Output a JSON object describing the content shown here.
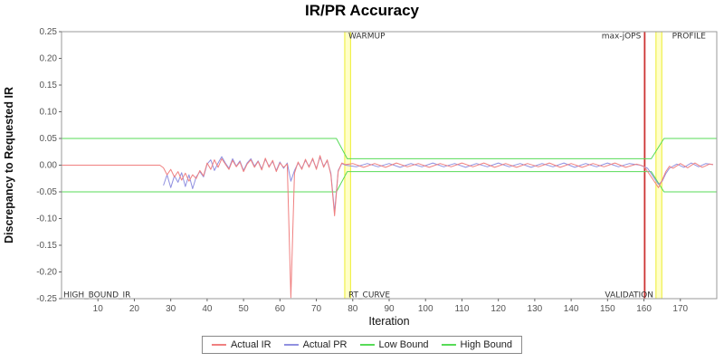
{
  "title": "IR/PR Accuracy",
  "axes": {
    "x_label": "Iteration",
    "y_label": "Discrepancy to Requested IR",
    "x_ticks": [
      10,
      20,
      30,
      40,
      50,
      60,
      70,
      80,
      90,
      100,
      110,
      120,
      130,
      140,
      150,
      160,
      170
    ],
    "y_ticks": [
      -0.25,
      -0.2,
      -0.15,
      -0.1,
      -0.05,
      0.0,
      0.05,
      0.1,
      0.15,
      0.2,
      0.25
    ]
  },
  "colors": {
    "actual_ir": "#f08080",
    "actual_pr": "#9090e0",
    "bound": "#57db57",
    "band_fill": "#ffffc8",
    "band_edge": "#eded30",
    "vline": "#cc3333",
    "plot_border": "#999999",
    "tick": "#666666",
    "tick_label": "#555555",
    "annotation": "#333333"
  },
  "legend": [
    {
      "label": "Actual IR",
      "color": "#f08080"
    },
    {
      "label": "Actual PR",
      "color": "#9090e0"
    },
    {
      "label": "Low Bound",
      "color": "#57db57"
    },
    {
      "label": "High Bound",
      "color": "#57db57"
    }
  ],
  "chart_data": {
    "type": "line",
    "title": "IR/PR Accuracy",
    "xlabel": "Iteration",
    "ylabel": "Discrepancy to Requested IR",
    "x_range": [
      0,
      180
    ],
    "y_range": [
      -0.25,
      0.25
    ],
    "grid": false,
    "legend_position": "bottom",
    "bands": [
      {
        "name": "warmup-band",
        "x0": 77.8,
        "x1": 79.4
      },
      {
        "name": "profile-band",
        "x0": 163.3,
        "x1": 164.9
      }
    ],
    "vlines": [
      {
        "name": "max-jops-line",
        "x": 160.2
      }
    ],
    "annotations": [
      {
        "text": "WARMUP",
        "x": 78.8,
        "y": 0.242,
        "anchor": "start"
      },
      {
        "text": "max-jOPS",
        "x": 159.2,
        "y": 0.242,
        "anchor": "end"
      },
      {
        "text": "PROFILE",
        "x": 177.0,
        "y": 0.242,
        "anchor": "end"
      },
      {
        "text": "HIGH_BOUND_IR",
        "x": 0.5,
        "y": -0.242,
        "anchor": "start"
      },
      {
        "text": "RT_CURVE",
        "x": 78.8,
        "y": -0.242,
        "anchor": "start"
      },
      {
        "text": "VALIDATION",
        "x": 162.6,
        "y": -0.242,
        "anchor": "end"
      }
    ],
    "series": [
      {
        "name": "High Bound",
        "color": "#57db57",
        "width": 1,
        "points": [
          [
            0,
            0.05
          ],
          [
            75.5,
            0.05
          ],
          [
            78.5,
            0.012
          ],
          [
            162,
            0.012
          ],
          [
            165.5,
            0.05
          ],
          [
            180,
            0.05
          ]
        ]
      },
      {
        "name": "Low Bound",
        "color": "#57db57",
        "width": 1,
        "points": [
          [
            0,
            -0.05
          ],
          [
            75.5,
            -0.05
          ],
          [
            78.5,
            -0.012
          ],
          [
            162,
            -0.012
          ],
          [
            165.5,
            -0.05
          ],
          [
            180,
            -0.05
          ]
        ]
      },
      {
        "name": "Actual PR",
        "color": "#9090e0",
        "width": 1,
        "points": [
          [
            28,
            -0.038
          ],
          [
            29,
            -0.018
          ],
          [
            30,
            -0.042
          ],
          [
            31,
            -0.02
          ],
          [
            32,
            -0.032
          ],
          [
            33,
            -0.014
          ],
          [
            34,
            -0.04
          ],
          [
            35,
            -0.018
          ],
          [
            36,
            -0.044
          ],
          [
            37,
            -0.022
          ],
          [
            38,
            -0.012
          ],
          [
            39,
            -0.022
          ],
          [
            40,
            0.002
          ],
          [
            41,
            0.01
          ],
          [
            42,
            -0.01
          ],
          [
            43,
            0.004
          ],
          [
            44,
            0.016
          ],
          [
            45,
            0.004
          ],
          [
            46,
            -0.006
          ],
          [
            47,
            0.012
          ],
          [
            48,
            -0.002
          ],
          [
            49,
            0.008
          ],
          [
            50,
            -0.01
          ],
          [
            51,
            0.004
          ],
          [
            52,
            0.012
          ],
          [
            53,
            -0.002
          ],
          [
            54,
            0.008
          ],
          [
            55,
            -0.007
          ],
          [
            56,
            0.011
          ],
          [
            57,
            -0.002
          ],
          [
            58,
            0.007
          ],
          [
            59,
            -0.01
          ],
          [
            60,
            0.006
          ],
          [
            61,
            -0.006
          ],
          [
            62,
            0.004
          ],
          [
            63,
            -0.03
          ],
          [
            64,
            -0.01
          ],
          [
            65,
            0.004
          ],
          [
            66,
            -0.006
          ],
          [
            67,
            0.009
          ],
          [
            68,
            -0.002
          ],
          [
            69,
            0.011
          ],
          [
            70,
            -0.006
          ],
          [
            71,
            0.015
          ],
          [
            72,
            -0.002
          ],
          [
            73,
            0.008
          ],
          [
            74,
            -0.015
          ],
          [
            75,
            -0.088
          ],
          [
            76,
            -0.01
          ],
          [
            77,
            0.003
          ],
          [
            78,
            0.0
          ],
          [
            81,
            -0.003
          ],
          [
            84,
            0.003
          ],
          [
            87,
            -0.003
          ],
          [
            90,
            0.003
          ],
          [
            93,
            -0.004
          ],
          [
            96,
            0.003
          ],
          [
            99,
            -0.003
          ],
          [
            102,
            0.004
          ],
          [
            105,
            -0.003
          ],
          [
            108,
            0.003
          ],
          [
            111,
            -0.004
          ],
          [
            114,
            0.003
          ],
          [
            117,
            -0.003
          ],
          [
            120,
            0.004
          ],
          [
            123,
            -0.003
          ],
          [
            126,
            0.003
          ],
          [
            129,
            -0.004
          ],
          [
            132,
            0.003
          ],
          [
            135,
            -0.003
          ],
          [
            138,
            0.004
          ],
          [
            141,
            -0.004
          ],
          [
            144,
            0.003
          ],
          [
            147,
            -0.003
          ],
          [
            150,
            0.004
          ],
          [
            153,
            -0.003
          ],
          [
            156,
            0.003
          ],
          [
            159,
            0.0
          ],
          [
            161,
            -0.006
          ],
          [
            162,
            -0.016
          ],
          [
            163,
            -0.026
          ],
          [
            164,
            -0.036
          ],
          [
            165,
            -0.03
          ],
          [
            166,
            -0.016
          ],
          [
            167,
            -0.006
          ],
          [
            169,
            0.002
          ],
          [
            171,
            -0.004
          ],
          [
            173,
            0.004
          ],
          [
            175,
            -0.003
          ],
          [
            177,
            0.003
          ],
          [
            179,
            0.001
          ]
        ]
      },
      {
        "name": "Actual IR",
        "color": "#f08080",
        "width": 1,
        "points": [
          [
            0,
            0
          ],
          [
            27,
            0
          ],
          [
            28,
            -0.005
          ],
          [
            29,
            -0.018
          ],
          [
            30,
            -0.008
          ],
          [
            31,
            -0.022
          ],
          [
            32,
            -0.012
          ],
          [
            33,
            -0.028
          ],
          [
            34,
            -0.015
          ],
          [
            35,
            -0.03
          ],
          [
            36,
            -0.018
          ],
          [
            37,
            -0.025
          ],
          [
            38,
            -0.01
          ],
          [
            39,
            -0.02
          ],
          [
            40,
            0.004
          ],
          [
            41,
            -0.008
          ],
          [
            42,
            0.01
          ],
          [
            43,
            -0.004
          ],
          [
            44,
            0.012
          ],
          [
            45,
            0.002
          ],
          [
            46,
            -0.008
          ],
          [
            47,
            0.009
          ],
          [
            48,
            -0.003
          ],
          [
            49,
            0.006
          ],
          [
            50,
            -0.012
          ],
          [
            51,
            0.002
          ],
          [
            52,
            0.01
          ],
          [
            53,
            -0.004
          ],
          [
            54,
            0.007
          ],
          [
            55,
            -0.009
          ],
          [
            56,
            0.013
          ],
          [
            57,
            -0.004
          ],
          [
            58,
            0.009
          ],
          [
            59,
            -0.012
          ],
          [
            60,
            0.004
          ],
          [
            61,
            -0.004
          ],
          [
            62,
            0.002
          ],
          [
            63,
            -0.248
          ],
          [
            64,
            -0.015
          ],
          [
            65,
            0.006
          ],
          [
            66,
            -0.008
          ],
          [
            67,
            0.011
          ],
          [
            68,
            -0.004
          ],
          [
            69,
            0.013
          ],
          [
            70,
            -0.008
          ],
          [
            71,
            0.018
          ],
          [
            72,
            -0.004
          ],
          [
            73,
            0.01
          ],
          [
            74,
            -0.018
          ],
          [
            75,
            -0.095
          ],
          [
            76,
            -0.012
          ],
          [
            77,
            0.004
          ],
          [
            78,
            0.001
          ],
          [
            80,
            0.003
          ],
          [
            83,
            -0.004
          ],
          [
            86,
            0.003
          ],
          [
            89,
            -0.004
          ],
          [
            92,
            0.004
          ],
          [
            95,
            -0.003
          ],
          [
            98,
            0.003
          ],
          [
            101,
            -0.004
          ],
          [
            104,
            0.003
          ],
          [
            107,
            -0.003
          ],
          [
            110,
            0.004
          ],
          [
            113,
            -0.003
          ],
          [
            116,
            0.004
          ],
          [
            119,
            -0.004
          ],
          [
            122,
            0.003
          ],
          [
            125,
            -0.004
          ],
          [
            128,
            0.003
          ],
          [
            131,
            -0.003
          ],
          [
            134,
            0.004
          ],
          [
            137,
            -0.004
          ],
          [
            140,
            0.003
          ],
          [
            143,
            -0.004
          ],
          [
            146,
            0.003
          ],
          [
            149,
            -0.003
          ],
          [
            152,
            0.004
          ],
          [
            155,
            -0.004
          ],
          [
            158,
            0.002
          ],
          [
            160,
            -0.002
          ],
          [
            161,
            -0.012
          ],
          [
            162,
            -0.022
          ],
          [
            163,
            -0.032
          ],
          [
            164,
            -0.042
          ],
          [
            165,
            -0.028
          ],
          [
            166,
            -0.012
          ],
          [
            167,
            -0.002
          ],
          [
            168,
            -0.006
          ],
          [
            170,
            0.003
          ],
          [
            172,
            -0.005
          ],
          [
            174,
            0.004
          ],
          [
            176,
            -0.004
          ],
          [
            178,
            0.002
          ],
          [
            179,
            0.001
          ]
        ]
      }
    ]
  }
}
